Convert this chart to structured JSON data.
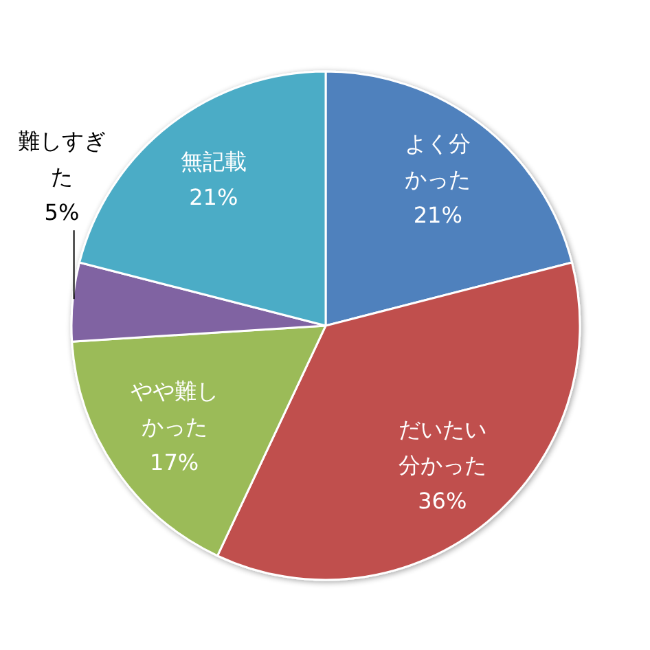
{
  "chart_data": {
    "type": "pie",
    "categories": [
      "よく分かった",
      "だいたい分かった",
      "やや難しかった",
      "難しすぎた",
      "無記載"
    ],
    "values": [
      21,
      36,
      17,
      5,
      21
    ],
    "value_labels": [
      "21%",
      "36%",
      "17%",
      "5%",
      "21%"
    ],
    "colors": [
      "#4f81bd",
      "#c0504d",
      "#9bbb59",
      "#8064a2",
      "#4bacc6"
    ]
  }
}
